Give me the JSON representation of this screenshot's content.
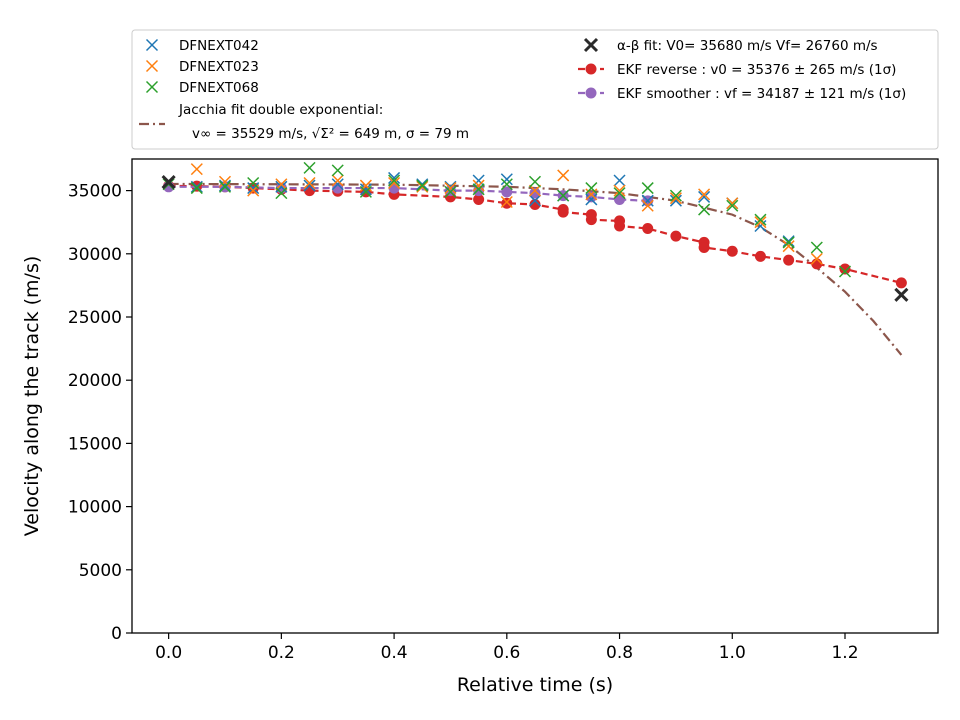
{
  "chart_data": {
    "type": "scatter",
    "xlabel": "Relative time (s)",
    "ylabel": "Velocity along the track (m/s)",
    "xlim": [
      -0.065,
      1.365
    ],
    "ylim": [
      0,
      37500
    ],
    "x_ticks": [
      0.0,
      0.2,
      0.4,
      0.6,
      0.8,
      1.0,
      1.2
    ],
    "x_tick_labels": [
      "0.0",
      "0.2",
      "0.4",
      "0.6",
      "0.8",
      "1.0",
      "1.2"
    ],
    "y_ticks": [
      0,
      5000,
      10000,
      15000,
      20000,
      25000,
      30000,
      35000
    ],
    "y_tick_labels": [
      "0",
      "5000",
      "10000",
      "15000",
      "20000",
      "25000",
      "30000",
      "35000"
    ],
    "grid": false,
    "legend_position": "above plot",
    "series": [
      {
        "name": "DFNEXT042",
        "marker": "x",
        "color": "#1f77b4",
        "x": [
          0.0,
          0.05,
          0.1,
          0.15,
          0.2,
          0.25,
          0.3,
          0.35,
          0.4,
          0.45,
          0.5,
          0.55,
          0.6,
          0.65,
          0.7,
          0.75,
          0.8,
          0.85,
          0.9,
          0.95,
          1.0,
          1.05,
          1.1
        ],
        "y": [
          35600,
          35300,
          35400,
          35200,
          35300,
          35400,
          35500,
          35100,
          36000,
          35500,
          35300,
          35800,
          35900,
          34200,
          34600,
          34300,
          35800,
          34200,
          34200,
          34500,
          34000,
          32200,
          31000
        ]
      },
      {
        "name": "DFNEXT023",
        "marker": "x",
        "color": "#ff7f0e",
        "x": [
          0.0,
          0.05,
          0.1,
          0.15,
          0.2,
          0.25,
          0.3,
          0.35,
          0.4,
          0.45,
          0.5,
          0.55,
          0.6,
          0.65,
          0.7,
          0.75,
          0.8,
          0.85,
          0.9,
          0.95,
          1.0,
          1.05,
          1.1,
          1.15
        ],
        "y": [
          35600,
          36700,
          35700,
          35000,
          35500,
          35600,
          35800,
          35400,
          35600,
          35300,
          35200,
          35400,
          34100,
          35000,
          36200,
          34700,
          35000,
          33800,
          34400,
          34700,
          34000,
          32500,
          30600,
          29600
        ]
      },
      {
        "name": "DFNEXT068",
        "marker": "x",
        "color": "#2ca02c",
        "x": [
          0.0,
          0.05,
          0.1,
          0.15,
          0.2,
          0.25,
          0.3,
          0.35,
          0.4,
          0.45,
          0.5,
          0.55,
          0.6,
          0.65,
          0.7,
          0.75,
          0.8,
          0.85,
          0.9,
          0.95,
          1.0,
          1.05,
          1.1,
          1.15,
          1.2
        ],
        "y": [
          35500,
          35200,
          35300,
          35600,
          34800,
          36800,
          36600,
          34900,
          35800,
          35400,
          34900,
          35100,
          35500,
          35700,
          34600,
          35200,
          34800,
          35200,
          34600,
          33500,
          33800,
          32700,
          30900,
          30500,
          28600
        ]
      },
      {
        "name": "Jacchia fit double exponential:",
        "name_line2": "v∞ = 35529 m/s, √Σ² = 649 m, σ = 79 m",
        "line": "dashdot",
        "color": "#8c564b",
        "x": [
          0.0,
          0.2,
          0.4,
          0.6,
          0.7,
          0.8,
          0.9,
          1.0,
          1.05,
          1.1,
          1.15,
          1.2,
          1.25,
          1.3
        ],
        "y": [
          35529,
          35500,
          35470,
          35300,
          35100,
          34800,
          34200,
          33100,
          32100,
          30700,
          28900,
          27000,
          24700,
          22000
        ]
      },
      {
        "name": "α-β fit: V0= 35680 m/s   Vf= 26760 m/s",
        "marker": "X",
        "color": "#2b2b2b",
        "x": [
          0.0,
          1.3
        ],
        "y": [
          35680,
          26760
        ]
      },
      {
        "name": "EKF reverse : v0 =  35376 ± 265 m/s (1σ)",
        "marker": "o",
        "line": "dashed",
        "color": "#d62728",
        "x": [
          0.0,
          0.05,
          0.1,
          0.15,
          0.2,
          0.25,
          0.3,
          0.35,
          0.4,
          0.5,
          0.55,
          0.6,
          0.65,
          0.7,
          0.7,
          0.75,
          0.75,
          0.8,
          0.8,
          0.85,
          0.9,
          0.95,
          0.95,
          1.0,
          1.05,
          1.1,
          1.15,
          1.2,
          1.3
        ],
        "y": [
          35376,
          35350,
          35300,
          35200,
          35100,
          35000,
          34950,
          34900,
          34700,
          34500,
          34300,
          34000,
          33900,
          33500,
          33300,
          33100,
          32700,
          32600,
          32200,
          32000,
          31400,
          30900,
          30500,
          30200,
          29800,
          29500,
          29200,
          28800,
          27700
        ]
      },
      {
        "name": "EKF smoother : vf =  34187 ± 121 m/s (1σ)",
        "marker": "o",
        "line": "dashed",
        "color": "#9467bd",
        "x": [
          0.0,
          0.1,
          0.2,
          0.3,
          0.4,
          0.5,
          0.55,
          0.6,
          0.65,
          0.7,
          0.75,
          0.8,
          0.85
        ],
        "y": [
          35300,
          35300,
          35200,
          35200,
          35200,
          35000,
          35000,
          34900,
          34800,
          34600,
          34500,
          34300,
          34187
        ]
      }
    ]
  }
}
